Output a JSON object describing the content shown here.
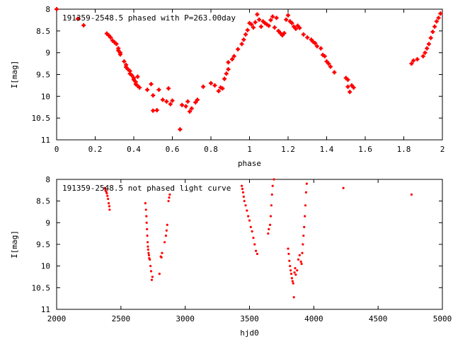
{
  "chart_data": [
    {
      "type": "scatter",
      "title": "191359-2548.5 phased with P=263.00day",
      "xlabel": "phase",
      "ylabel": "I[mag]",
      "xlim": [
        0,
        2
      ],
      "ylim": [
        11,
        8
      ],
      "y_inverted": true,
      "xticks": [
        0,
        0.2,
        0.4,
        0.6,
        0.8,
        1,
        1.2,
        1.4,
        1.6,
        1.8,
        2
      ],
      "xtick_labels": [
        "0",
        "0.2",
        "0.4",
        "0.6",
        "0.8",
        "1",
        "1.2",
        "1.4",
        "1.6",
        "1.8",
        "2"
      ],
      "yticks": [
        8,
        8.5,
        9,
        9.5,
        10,
        10.5,
        11
      ],
      "ytick_labels": [
        "8",
        "8.5",
        "9",
        "9.5",
        "10",
        "10.5",
        "11"
      ],
      "grid": false,
      "marker_color": "#ff0000",
      "marker": "plus-dot",
      "series": [
        {
          "points": [
            [
              0.0,
              8.0
            ],
            [
              0.11,
              8.22
            ],
            [
              0.14,
              8.37
            ],
            [
              0.26,
              8.56
            ],
            [
              0.27,
              8.6
            ],
            [
              0.28,
              8.65
            ],
            [
              0.29,
              8.72
            ],
            [
              0.3,
              8.76
            ],
            [
              0.31,
              8.8
            ],
            [
              0.32,
              8.9
            ],
            [
              0.32,
              8.95
            ],
            [
              0.33,
              9.0
            ],
            [
              0.33,
              9.04
            ],
            [
              0.35,
              9.2
            ],
            [
              0.36,
              9.28
            ],
            [
              0.36,
              9.33
            ],
            [
              0.37,
              9.38
            ],
            [
              0.38,
              9.42
            ],
            [
              0.38,
              9.48
            ],
            [
              0.39,
              9.52
            ],
            [
              0.4,
              9.58
            ],
            [
              0.4,
              9.62
            ],
            [
              0.41,
              9.67
            ],
            [
              0.41,
              9.72
            ],
            [
              0.42,
              9.76
            ],
            [
              0.43,
              9.8
            ],
            [
              0.42,
              9.55
            ],
            [
              0.47,
              9.85
            ],
            [
              0.49,
              9.72
            ],
            [
              0.5,
              9.98
            ],
            [
              0.5,
              10.33
            ],
            [
              0.52,
              10.32
            ],
            [
              0.53,
              9.85
            ],
            [
              0.55,
              10.08
            ],
            [
              0.57,
              10.12
            ],
            [
              0.58,
              9.82
            ],
            [
              0.59,
              10.18
            ],
            [
              0.6,
              10.1
            ],
            [
              0.64,
              10.76
            ],
            [
              0.65,
              10.2
            ],
            [
              0.67,
              10.23
            ],
            [
              0.68,
              10.12
            ],
            [
              0.69,
              10.35
            ],
            [
              0.7,
              10.28
            ],
            [
              0.72,
              10.14
            ],
            [
              0.73,
              10.08
            ],
            [
              0.76,
              9.78
            ],
            [
              0.8,
              9.7
            ],
            [
              0.82,
              9.75
            ],
            [
              0.84,
              9.88
            ],
            [
              0.85,
              9.8
            ],
            [
              0.86,
              9.82
            ],
            [
              0.87,
              9.6
            ],
            [
              0.88,
              9.48
            ],
            [
              0.89,
              9.38
            ],
            [
              0.89,
              9.22
            ],
            [
              0.91,
              9.15
            ],
            [
              0.92,
              9.08
            ],
            [
              0.94,
              8.92
            ],
            [
              0.96,
              8.8
            ],
            [
              0.97,
              8.7
            ],
            [
              0.98,
              8.58
            ],
            [
              0.99,
              8.48
            ],
            [
              1.0,
              8.32
            ],
            [
              1.01,
              8.35
            ],
            [
              1.02,
              8.42
            ],
            [
              1.03,
              8.3
            ],
            [
              1.04,
              8.12
            ],
            [
              1.05,
              8.24
            ],
            [
              1.06,
              8.4
            ],
            [
              1.07,
              8.28
            ],
            [
              1.08,
              8.32
            ],
            [
              1.09,
              8.35
            ],
            [
              1.1,
              8.38
            ],
            [
              1.11,
              8.25
            ],
            [
              1.12,
              8.17
            ],
            [
              1.13,
              8.42
            ],
            [
              1.14,
              8.2
            ],
            [
              1.15,
              8.5
            ],
            [
              1.16,
              8.55
            ],
            [
              1.17,
              8.6
            ],
            [
              1.18,
              8.55
            ],
            [
              1.19,
              8.24
            ],
            [
              1.2,
              8.14
            ],
            [
              1.21,
              8.28
            ],
            [
              1.22,
              8.32
            ],
            [
              1.23,
              8.4
            ],
            [
              1.24,
              8.45
            ],
            [
              1.25,
              8.38
            ],
            [
              1.26,
              8.43
            ],
            [
              1.28,
              8.58
            ],
            [
              1.3,
              8.65
            ],
            [
              1.32,
              8.7
            ],
            [
              1.33,
              8.75
            ],
            [
              1.34,
              8.78
            ],
            [
              1.35,
              8.85
            ],
            [
              1.37,
              8.9
            ],
            [
              1.38,
              9.05
            ],
            [
              1.39,
              9.08
            ],
            [
              1.4,
              9.2
            ],
            [
              1.41,
              9.25
            ],
            [
              1.42,
              9.32
            ],
            [
              1.44,
              9.45
            ],
            [
              1.5,
              9.58
            ],
            [
              1.51,
              9.62
            ],
            [
              1.51,
              9.78
            ],
            [
              1.52,
              9.9
            ],
            [
              1.53,
              9.75
            ],
            [
              1.54,
              9.8
            ],
            [
              1.84,
              9.25
            ],
            [
              1.85,
              9.18
            ],
            [
              1.87,
              9.15
            ],
            [
              1.9,
              9.08
            ],
            [
              1.91,
              9.0
            ],
            [
              1.92,
              8.9
            ],
            [
              1.93,
              8.8
            ],
            [
              1.94,
              8.66
            ],
            [
              1.95,
              8.52
            ],
            [
              1.96,
              8.4
            ],
            [
              1.97,
              8.28
            ],
            [
              1.98,
              8.2
            ],
            [
              1.99,
              8.1
            ]
          ]
        }
      ]
    },
    {
      "type": "scatter",
      "title": "191359-2548.5 not phased light curve",
      "xlabel": "hjd0",
      "ylabel": "I[mag]",
      "xlim": [
        2000,
        5000
      ],
      "ylim": [
        11,
        8
      ],
      "y_inverted": true,
      "xticks": [
        2000,
        2500,
        3000,
        3500,
        4000,
        4500,
        5000
      ],
      "xtick_labels": [
        "2000",
        "2500",
        "3000",
        "3500",
        "4000",
        "4500",
        "5000"
      ],
      "yticks": [
        8,
        8.5,
        9,
        9.5,
        10,
        10.5,
        11
      ],
      "ytick_labels": [
        "8",
        "8.5",
        "9",
        "9.5",
        "10",
        "10.5",
        "11"
      ],
      "grid": false,
      "marker_color": "#ff0000",
      "marker": "dot",
      "series": [
        {
          "points": [
            [
              2375,
              8.2
            ],
            [
              2380,
              8.25
            ],
            [
              2385,
              8.28
            ],
            [
              2390,
              8.32
            ],
            [
              2395,
              8.38
            ],
            [
              2400,
              8.45
            ],
            [
              2405,
              8.55
            ],
            [
              2410,
              8.62
            ],
            [
              2412,
              8.7
            ],
            [
              2690,
              8.55
            ],
            [
              2695,
              8.7
            ],
            [
              2698,
              8.85
            ],
            [
              2700,
              9.0
            ],
            [
              2703,
              9.15
            ],
            [
              2705,
              9.3
            ],
            [
              2708,
              9.45
            ],
            [
              2710,
              9.55
            ],
            [
              2712,
              9.62
            ],
            [
              2715,
              9.7
            ],
            [
              2718,
              9.75
            ],
            [
              2720,
              9.82
            ],
            [
              2725,
              9.85
            ],
            [
              2730,
              10.0
            ],
            [
              2735,
              10.12
            ],
            [
              2740,
              10.32
            ],
            [
              2745,
              10.25
            ],
            [
              2800,
              10.18
            ],
            [
              2810,
              9.78
            ],
            [
              2815,
              9.8
            ],
            [
              2820,
              9.7
            ],
            [
              2840,
              9.45
            ],
            [
              2850,
              9.3
            ],
            [
              2855,
              9.18
            ],
            [
              2860,
              9.05
            ],
            [
              2870,
              8.5
            ],
            [
              2875,
              8.42
            ],
            [
              2880,
              8.35
            ],
            [
              3440,
              8.15
            ],
            [
              3445,
              8.22
            ],
            [
              3450,
              8.3
            ],
            [
              3455,
              8.4
            ],
            [
              3460,
              8.5
            ],
            [
              3470,
              8.6
            ],
            [
              3480,
              8.72
            ],
            [
              3490,
              8.85
            ],
            [
              3500,
              8.95
            ],
            [
              3510,
              9.1
            ],
            [
              3520,
              9.2
            ],
            [
              3530,
              9.35
            ],
            [
              3540,
              9.5
            ],
            [
              3550,
              9.65
            ],
            [
              3560,
              9.72
            ],
            [
              3645,
              9.25
            ],
            [
              3650,
              9.15
            ],
            [
              3660,
              9.05
            ],
            [
              3665,
              8.85
            ],
            [
              3670,
              8.6
            ],
            [
              3675,
              8.35
            ],
            [
              3680,
              8.15
            ],
            [
              3690,
              8.0
            ],
            [
              3800,
              9.6
            ],
            [
              3805,
              9.72
            ],
            [
              3810,
              9.88
            ],
            [
              3815,
              10.0
            ],
            [
              3820,
              10.1
            ],
            [
              3825,
              10.18
            ],
            [
              3830,
              10.28
            ],
            [
              3835,
              10.35
            ],
            [
              3840,
              10.4
            ],
            [
              3845,
              10.72
            ],
            [
              3850,
              10.15
            ],
            [
              3855,
              10.05
            ],
            [
              3860,
              10.2
            ],
            [
              3870,
              10.1
            ],
            [
              3880,
              9.85
            ],
            [
              3890,
              9.75
            ],
            [
              3900,
              9.9
            ],
            [
              3905,
              9.95
            ],
            [
              3910,
              9.7
            ],
            [
              3915,
              9.5
            ],
            [
              3920,
              9.3
            ],
            [
              3925,
              9.1
            ],
            [
              3930,
              8.85
            ],
            [
              3935,
              8.6
            ],
            [
              3940,
              8.3
            ],
            [
              3945,
              8.1
            ],
            [
              4230,
              8.2
            ],
            [
              4760,
              8.35
            ]
          ]
        }
      ]
    }
  ]
}
